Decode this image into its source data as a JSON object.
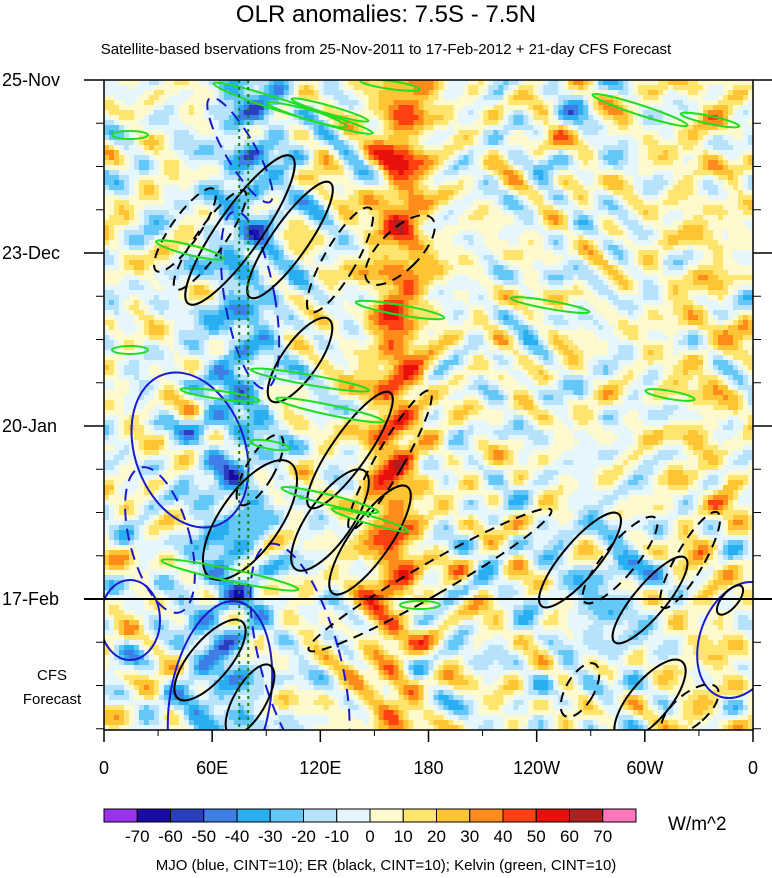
{
  "chart_data": {
    "type": "heatmap",
    "title": "OLR anomalies: 7.5S - 7.5N",
    "subtitle": "Satellite-based bservations from 25-Nov-2011 to 17-Feb-2012 + 21-day CFS Forecast",
    "footer": "MJO (blue, CINT=10); ER (black, CINT=10); Kelvin (green, CINT=10)",
    "colorbar_units": "W/m^2",
    "forecast_label": [
      "CFS",
      "Forecast"
    ],
    "x_ticks": [
      "0",
      "60E",
      "120E",
      "180",
      "120W",
      "60W",
      "0"
    ],
    "y_ticks": [
      "25-Nov",
      "23-Dec",
      "20-Jan",
      "17-Feb"
    ],
    "colorbar_levels": [
      "-70",
      "-60",
      "-50",
      "-40",
      "-30",
      "-20",
      "-10",
      "0",
      "10",
      "20",
      "30",
      "40",
      "50",
      "60",
      "70"
    ],
    "colorbar_colors": [
      "#9933ee",
      "#1a0aa6",
      "#2a3fbf",
      "#3d7fe6",
      "#2aaef2",
      "#63c8f8",
      "#b6e2fb",
      "#e6f6fd",
      "#fffacd",
      "#ffe56e",
      "#ffc433",
      "#ff8c1a",
      "#ff4010",
      "#e8100a",
      "#b02020",
      "#ff77bb"
    ],
    "observation_end": "17-Feb",
    "reference_lines": {
      "green_dotted_lon": [
        75,
        80
      ]
    },
    "legend": {
      "mjo": {
        "label": "MJO (blue, CINT=10)",
        "color": "#1a1acc"
      },
      "er": {
        "label": "ER (black, CINT=10)",
        "color": "#000000"
      },
      "kelvin": {
        "label": "Kelvin (green, CINT=10)",
        "color": "#22dd22"
      }
    }
  }
}
